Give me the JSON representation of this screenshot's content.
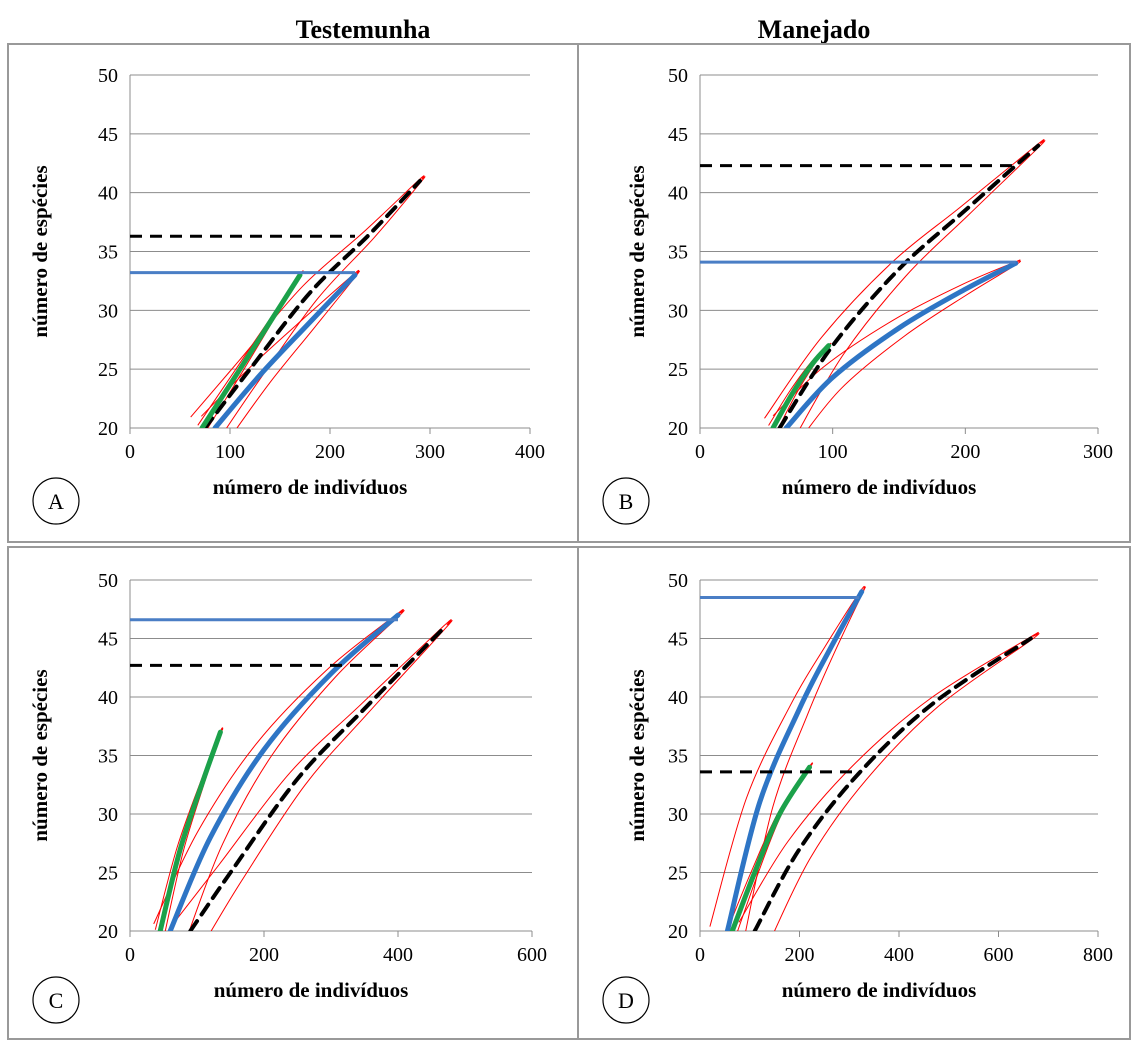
{
  "column_titles": [
    "Testemunha",
    "Manejado"
  ],
  "colors": {
    "blue": "#2E75C5",
    "blue_flat": "#4A7EC5",
    "green": "#1BA14A",
    "black": "#000000",
    "envelope": "#FF0000",
    "grid": "#8C8C8C",
    "frame": "#999999"
  },
  "chart_data": [
    {
      "panel": "A",
      "type": "line",
      "xlabel": "número de indivíduos",
      "ylabel": "número de espécies",
      "xlim": [
        0,
        400
      ],
      "ylim": [
        20,
        50
      ],
      "xticks": [
        0,
        100,
        200,
        300,
        400
      ],
      "yticks": [
        20,
        25,
        30,
        35,
        40,
        45,
        50
      ],
      "grid": true,
      "series": [
        {
          "style": "black-dashed",
          "x": [
            75,
            120,
            180,
            240,
            290
          ],
          "y": [
            20,
            25,
            31.5,
            36.5,
            41
          ],
          "flat_y": 36.3,
          "flat_x_end": 225
        },
        {
          "style": "blue",
          "x": [
            85,
            130,
            180,
            225
          ],
          "y": [
            20,
            24.5,
            29,
            33
          ],
          "flat_y": 33.2,
          "flat_x_end": 225
        },
        {
          "style": "green",
          "x": [
            72,
            110,
            140,
            170
          ],
          "y": [
            20,
            25,
            29,
            33
          ]
        }
      ]
    },
    {
      "panel": "B",
      "type": "line",
      "xlabel": "número de indivíduos",
      "ylabel": "número de espécies",
      "xlim": [
        0,
        300
      ],
      "ylim": [
        20,
        50
      ],
      "xticks": [
        0,
        100,
        200,
        300
      ],
      "yticks": [
        20,
        25,
        30,
        35,
        40,
        45,
        50
      ],
      "grid": true,
      "series": [
        {
          "style": "black-dashed",
          "x": [
            60,
            100,
            150,
            200,
            255
          ],
          "y": [
            20,
            27,
            33.5,
            38.5,
            44
          ],
          "flat_y": 42.3,
          "flat_x_end": 240
        },
        {
          "style": "blue",
          "x": [
            65,
            100,
            150,
            200,
            238
          ],
          "y": [
            20,
            24.3,
            28.5,
            31.8,
            34
          ],
          "flat_y": 34.1,
          "flat_x_end": 238
        },
        {
          "style": "green",
          "x": [
            55,
            70,
            85,
            97
          ],
          "y": [
            20,
            23,
            25.5,
            27
          ]
        }
      ]
    },
    {
      "panel": "C",
      "type": "line",
      "xlabel": "número de indivíduos",
      "ylabel": "número de espécies",
      "xlim": [
        0,
        600
      ],
      "ylim": [
        20,
        50
      ],
      "xticks": [
        0,
        200,
        400,
        600
      ],
      "yticks": [
        20,
        25,
        30,
        35,
        40,
        45,
        50
      ],
      "grid": true,
      "series": [
        {
          "style": "black-dashed",
          "x": [
            90,
            150,
            250,
            350,
            470
          ],
          "y": [
            20,
            25,
            33,
            39,
            46
          ],
          "flat_y": 42.7,
          "flat_x_end": 400
        },
        {
          "style": "blue",
          "x": [
            60,
            120,
            200,
            300,
            400
          ],
          "y": [
            20,
            28,
            35.5,
            42,
            47
          ],
          "flat_y": 46.6,
          "flat_x_end": 400
        },
        {
          "style": "green",
          "x": [
            45,
            75,
            110,
            135
          ],
          "y": [
            20,
            27,
            33,
            37
          ]
        }
      ]
    },
    {
      "panel": "D",
      "type": "line",
      "xlabel": "número de indivíduos",
      "ylabel": "número de espécies",
      "xlim": [
        0,
        800
      ],
      "ylim": [
        20,
        50
      ],
      "xticks": [
        0,
        200,
        400,
        600,
        800
      ],
      "yticks": [
        20,
        25,
        30,
        35,
        40,
        45,
        50
      ],
      "grid": true,
      "series": [
        {
          "style": "black-dashed",
          "x": [
            110,
            200,
            320,
            470,
            665
          ],
          "y": [
            20,
            27,
            33.5,
            39.5,
            45
          ],
          "flat_y": 33.6,
          "flat_x_end": 320
        },
        {
          "style": "blue",
          "x": [
            55,
            120,
            200,
            260,
            325
          ],
          "y": [
            20,
            31,
            39,
            44,
            49
          ],
          "flat_y": 48.5,
          "flat_x_end": 320
        },
        {
          "style": "green",
          "x": [
            65,
            110,
            160,
            220
          ],
          "y": [
            20,
            25,
            30,
            34
          ]
        }
      ]
    }
  ]
}
